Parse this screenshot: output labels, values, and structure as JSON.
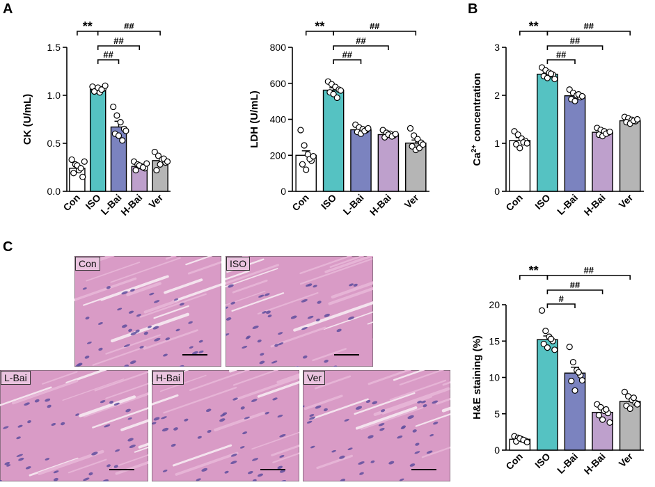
{
  "panels": {
    "A": "A",
    "B": "B",
    "C": "C"
  },
  "stain_colors": {
    "bg": "#d99bc6",
    "fiber": "#e6b4d6",
    "nucleus": "#5f4f9e",
    "gap": "#f4e3ee"
  },
  "micrographs": [
    {
      "key": "con",
      "label": "Con"
    },
    {
      "key": "iso",
      "label": "ISO"
    },
    {
      "key": "lbai",
      "label": "L-Bai"
    },
    {
      "key": "hbai",
      "label": "H-Bai"
    },
    {
      "key": "ver",
      "label": "Ver"
    }
  ],
  "chart_data": [
    {
      "id": "ck",
      "type": "bar",
      "title": "",
      "ylabel": "CK (U/mL)",
      "ylim": [
        0,
        1.5
      ],
      "yticks": [
        0.0,
        0.5,
        1.0,
        1.5
      ],
      "tick_labels": [
        "0.0",
        "0.5",
        "1.0",
        "1.5"
      ],
      "categories": [
        "Con",
        "ISO",
        "L-Bai",
        "H-Bai",
        "Ver"
      ],
      "colors": [
        "#ffffff",
        "#55c2c2",
        "#7b83bf",
        "#bea0cc",
        "#b5b5b5"
      ],
      "values": [
        0.24,
        1.06,
        0.67,
        0.26,
        0.32
      ],
      "sem": [
        0.03,
        0.02,
        0.06,
        0.02,
        0.03
      ],
      "points": [
        [
          0.33,
          0.28,
          0.22,
          0.15,
          0.19,
          0.27,
          0.24,
          0.31
        ],
        [
          1.09,
          1.05,
          1.03,
          1.07,
          1.04,
          1.08,
          1.06,
          1.1
        ],
        [
          0.88,
          0.79,
          0.72,
          0.65,
          0.6,
          0.58,
          0.53,
          0.63
        ],
        [
          0.31,
          0.28,
          0.26,
          0.24,
          0.22,
          0.27,
          0.25,
          0.29
        ],
        [
          0.41,
          0.37,
          0.33,
          0.3,
          0.22,
          0.28,
          0.34,
          0.31
        ]
      ],
      "significance": [
        {
          "from": 0,
          "to": 1,
          "label": "**",
          "level": 3
        },
        {
          "from": 1,
          "to": 4,
          "label": "##",
          "level": 3
        },
        {
          "from": 1,
          "to": 3,
          "label": "##",
          "level": 2
        },
        {
          "from": 1,
          "to": 2,
          "label": "##",
          "level": 1
        }
      ]
    },
    {
      "id": "ldh",
      "type": "bar",
      "title": "",
      "ylabel": "LDH (U/mL)",
      "ylim": [
        0,
        800
      ],
      "yticks": [
        0,
        200,
        400,
        600,
        800
      ],
      "tick_labels": [
        "0",
        "200",
        "400",
        "600",
        "800"
      ],
      "categories": [
        "Con",
        "ISO",
        "L-Bai",
        "H-Bai",
        "Ver"
      ],
      "colors": [
        "#ffffff",
        "#55c2c2",
        "#7b83bf",
        "#bea0cc",
        "#b5b5b5"
      ],
      "values": [
        200,
        562,
        342,
        315,
        268
      ],
      "sem": [
        25,
        13,
        12,
        8,
        17
      ],
      "points": [
        [
          340,
          255,
          205,
          170,
          150,
          120,
          180,
          195
        ],
        [
          610,
          595,
          580,
          565,
          550,
          540,
          520,
          560
        ],
        [
          370,
          355,
          345,
          340,
          330,
          320,
          335,
          350
        ],
        [
          340,
          325,
          320,
          310,
          300,
          315,
          305,
          318
        ],
        [
          350,
          310,
          290,
          270,
          250,
          230,
          240,
          260
        ]
      ],
      "significance": [
        {
          "from": 0,
          "to": 1,
          "label": "**",
          "level": 3
        },
        {
          "from": 1,
          "to": 4,
          "label": "##",
          "level": 3
        },
        {
          "from": 1,
          "to": 3,
          "label": "##",
          "level": 2
        },
        {
          "from": 1,
          "to": 2,
          "label": "##",
          "level": 1
        }
      ]
    },
    {
      "id": "ca",
      "type": "bar",
      "title": "",
      "ylabel_main": "Ca",
      "ylabel_sup": "2+",
      "ylabel_rest": " concentration",
      "ylim": [
        0,
        3
      ],
      "yticks": [
        0,
        1,
        2,
        3
      ],
      "tick_labels": [
        "0",
        "1",
        "2",
        "3"
      ],
      "categories": [
        "Con",
        "ISO",
        "L-Bai",
        "H-Bai",
        "Ver"
      ],
      "colors": [
        "#ffffff",
        "#55c2c2",
        "#7b83bf",
        "#bea0cc",
        "#b5b5b5"
      ],
      "values": [
        1.06,
        2.44,
        1.99,
        1.23,
        1.47
      ],
      "sem": [
        0.06,
        0.03,
        0.04,
        0.03,
        0.03
      ],
      "points": [
        [
          1.25,
          1.18,
          1.1,
          1.05,
          0.98,
          0.9,
          1.02,
          1.0
        ],
        [
          2.58,
          2.52,
          2.47,
          2.43,
          2.4,
          2.36,
          2.45,
          2.34
        ],
        [
          2.12,
          2.05,
          2.0,
          1.96,
          1.92,
          1.88,
          2.02,
          1.98
        ],
        [
          1.32,
          1.28,
          1.25,
          1.22,
          1.18,
          1.15,
          1.2,
          1.24
        ],
        [
          1.55,
          1.52,
          1.49,
          1.46,
          1.44,
          1.41,
          1.47,
          1.5
        ]
      ],
      "significance": [
        {
          "from": 0,
          "to": 1,
          "label": "**",
          "level": 3
        },
        {
          "from": 1,
          "to": 4,
          "label": "##",
          "level": 3
        },
        {
          "from": 1,
          "to": 3,
          "label": "##",
          "level": 2
        },
        {
          "from": 1,
          "to": 2,
          "label": "##",
          "level": 1
        }
      ]
    },
    {
      "id": "he",
      "type": "bar",
      "title": "",
      "ylabel": "H&E staining (%)",
      "ylim": [
        0,
        20
      ],
      "yticks": [
        0,
        5,
        10,
        15,
        20
      ],
      "tick_labels": [
        "0",
        "5",
        "10",
        "15",
        "20"
      ],
      "categories": [
        "Con",
        "ISO",
        "L-Bai",
        "H-Bai",
        "Ver"
      ],
      "colors": [
        "#ffffff",
        "#55c2c2",
        "#7b83bf",
        "#bea0cc",
        "#b5b5b5"
      ],
      "values": [
        1.5,
        15.2,
        10.6,
        5.2,
        6.7
      ],
      "sem": [
        0.2,
        0.5,
        0.8,
        0.4,
        0.4
      ],
      "points": [
        [
          1.9,
          1.7,
          1.5,
          1.3,
          1.2,
          1.6,
          1.4,
          1.1
        ],
        [
          19.2,
          16.4,
          15.6,
          15.0,
          14.6,
          14.1,
          15.3,
          13.8
        ],
        [
          14.2,
          12.1,
          11.0,
          10.3,
          9.5,
          8.2,
          10.7,
          9.6
        ],
        [
          6.3,
          5.9,
          5.4,
          5.1,
          4.8,
          4.2,
          5.6,
          3.8
        ],
        [
          8.0,
          7.4,
          6.9,
          6.5,
          6.1,
          5.7,
          7.2,
          6.3
        ]
      ],
      "significance": [
        {
          "from": 0,
          "to": 1,
          "label": "**",
          "level": 3
        },
        {
          "from": 1,
          "to": 4,
          "label": "##",
          "level": 3
        },
        {
          "from": 1,
          "to": 3,
          "label": "##",
          "level": 2
        },
        {
          "from": 1,
          "to": 2,
          "label": "#",
          "level": 1
        }
      ]
    }
  ]
}
